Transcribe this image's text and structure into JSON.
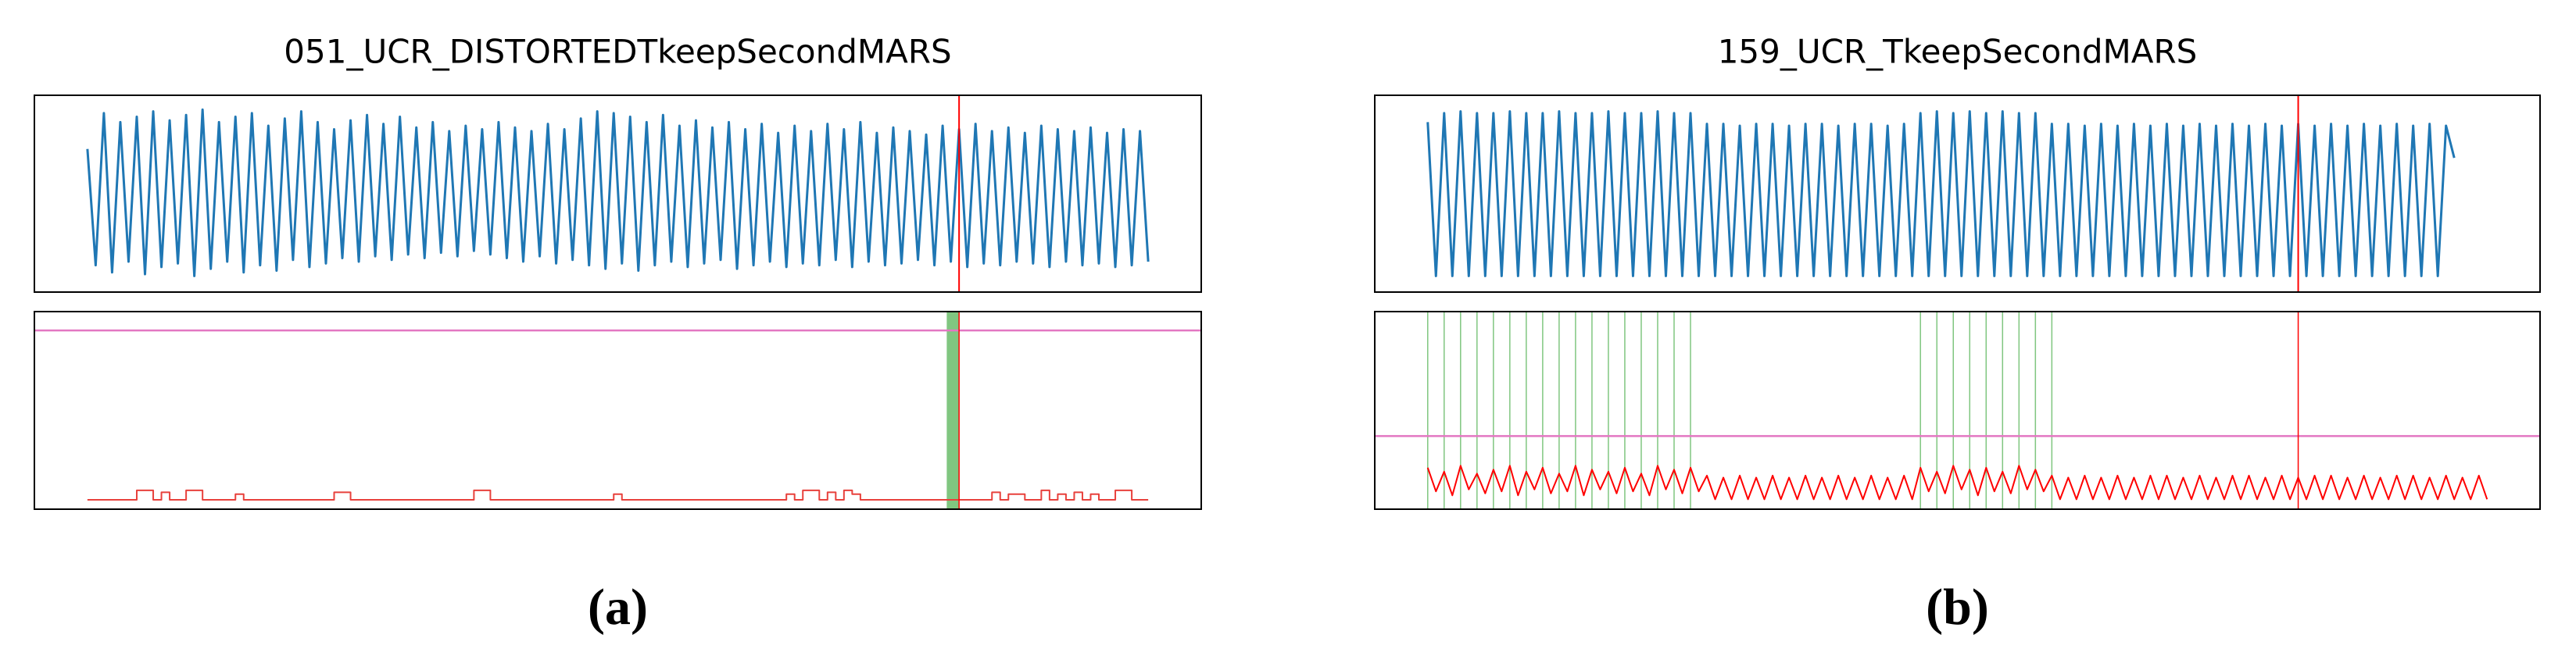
{
  "chart_data": [
    {
      "type": "line",
      "title": "051_UCR_DISTORTEDTkeepSecondMARS",
      "caption": "(a)",
      "xlim": [
        -6.45,
        135.45
      ],
      "signal_ylim": [
        -0.05,
        1.05
      ],
      "score_ylim": [
        0,
        1.05
      ],
      "signal": {
        "color": "#1f77b4",
        "values": [
          0.75,
          0.1,
          0.95,
          0.06,
          0.9,
          0.12,
          0.93,
          0.05,
          0.96,
          0.09,
          0.91,
          0.11,
          0.94,
          0.04,
          0.97,
          0.08,
          0.9,
          0.12,
          0.93,
          0.06,
          0.95,
          0.1,
          0.88,
          0.07,
          0.92,
          0.13,
          0.96,
          0.09,
          0.9,
          0.11,
          0.86,
          0.14,
          0.91,
          0.12,
          0.94,
          0.15,
          0.89,
          0.13,
          0.93,
          0.16,
          0.87,
          0.14,
          0.9,
          0.17,
          0.85,
          0.15,
          0.88,
          0.18,
          0.86,
          0.16,
          0.9,
          0.14,
          0.87,
          0.12,
          0.85,
          0.15,
          0.89,
          0.11,
          0.86,
          0.13,
          0.92,
          0.1,
          0.96,
          0.08,
          0.95,
          0.11,
          0.93,
          0.07,
          0.9,
          0.1,
          0.94,
          0.12,
          0.88,
          0.09,
          0.91,
          0.11,
          0.87,
          0.13,
          0.9,
          0.08,
          0.86,
          0.1,
          0.89,
          0.12,
          0.84,
          0.09,
          0.88,
          0.11,
          0.85,
          0.1,
          0.89,
          0.13,
          0.86,
          0.09,
          0.9,
          0.12,
          0.84,
          0.1,
          0.87,
          0.11,
          0.85,
          0.13,
          0.83,
          0.1,
          0.88,
          0.12,
          0.86,
          0.09,
          0.89,
          0.11,
          0.85,
          0.1,
          0.87,
          0.12,
          0.84,
          0.11,
          0.88,
          0.09,
          0.86,
          0.12,
          0.85,
          0.1,
          0.87,
          0.11,
          0.84,
          0.09,
          0.86,
          0.1,
          0.85,
          0.12
        ]
      },
      "score": {
        "color": "#e8413c",
        "drawstyle": "steps",
        "values": [
          0.05,
          0.05,
          0.05,
          0.05,
          0.05,
          0.05,
          0.1,
          0.1,
          0.05,
          0.09,
          0.05,
          0.05,
          0.1,
          0.1,
          0.05,
          0.05,
          0.05,
          0.05,
          0.08,
          0.05,
          0.05,
          0.05,
          0.05,
          0.05,
          0.05,
          0.05,
          0.05,
          0.05,
          0.05,
          0.05,
          0.09,
          0.09,
          0.05,
          0.05,
          0.05,
          0.05,
          0.05,
          0.05,
          0.05,
          0.05,
          0.05,
          0.05,
          0.05,
          0.05,
          0.05,
          0.05,
          0.05,
          0.1,
          0.1,
          0.05,
          0.05,
          0.05,
          0.05,
          0.05,
          0.05,
          0.05,
          0.05,
          0.05,
          0.05,
          0.05,
          0.05,
          0.05,
          0.05,
          0.05,
          0.08,
          0.05,
          0.05,
          0.05,
          0.05,
          0.05,
          0.05,
          0.05,
          0.05,
          0.05,
          0.05,
          0.05,
          0.05,
          0.05,
          0.05,
          0.05,
          0.05,
          0.05,
          0.05,
          0.05,
          0.05,
          0.08,
          0.05,
          0.1,
          0.1,
          0.05,
          0.09,
          0.05,
          0.1,
          0.08,
          0.05,
          0.05,
          0.05,
          0.05,
          0.05,
          0.05,
          0.05,
          0.05,
          0.05,
          0.05,
          0.05,
          0.05,
          0.05,
          0.05,
          0.05,
          0.05,
          0.09,
          0.05,
          0.08,
          0.08,
          0.05,
          0.05,
          0.1,
          0.05,
          0.08,
          0.05,
          0.09,
          0.05,
          0.08,
          0.05,
          0.05,
          0.1,
          0.1,
          0.05,
          0.05,
          0.05
        ]
      },
      "threshold": 0.95,
      "threshold_color": "#e377c2",
      "anomaly": 106,
      "anomaly_color": "#ff0000",
      "anomaly_region": [
        104.5,
        106
      ],
      "highlight_color": "#2ca02c"
    },
    {
      "type": "line",
      "title": "159_UCR_TkeepSecondMARS",
      "caption": "(b)",
      "xlim": [
        -6.45,
        135.45
      ],
      "signal_ylim": [
        -0.05,
        1.05
      ],
      "score_ylim": [
        0,
        1
      ],
      "signal": {
        "color": "#1f77b4",
        "values": [
          0.9,
          0.04,
          0.95,
          0.04,
          0.96,
          0.04,
          0.95,
          0.04,
          0.95,
          0.04,
          0.96,
          0.04,
          0.95,
          0.04,
          0.95,
          0.04,
          0.96,
          0.04,
          0.95,
          0.04,
          0.95,
          0.04,
          0.96,
          0.04,
          0.95,
          0.04,
          0.95,
          0.04,
          0.96,
          0.04,
          0.95,
          0.04,
          0.95,
          0.04,
          0.89,
          0.04,
          0.89,
          0.04,
          0.88,
          0.04,
          0.89,
          0.04,
          0.89,
          0.04,
          0.88,
          0.04,
          0.89,
          0.04,
          0.89,
          0.04,
          0.88,
          0.04,
          0.89,
          0.04,
          0.89,
          0.04,
          0.88,
          0.04,
          0.89,
          0.04,
          0.95,
          0.04,
          0.96,
          0.04,
          0.95,
          0.04,
          0.96,
          0.04,
          0.95,
          0.04,
          0.96,
          0.04,
          0.95,
          0.04,
          0.95,
          0.04,
          0.89,
          0.04,
          0.89,
          0.04,
          0.88,
          0.04,
          0.89,
          0.04,
          0.88,
          0.04,
          0.89,
          0.04,
          0.88,
          0.04,
          0.89,
          0.04,
          0.88,
          0.04,
          0.89,
          0.04,
          0.88,
          0.04,
          0.89,
          0.04,
          0.88,
          0.04,
          0.89,
          0.04,
          0.88,
          0.04,
          0.89,
          0.04,
          0.88,
          0.04,
          0.89,
          0.04,
          0.88,
          0.04,
          0.89,
          0.04,
          0.88,
          0.04,
          0.89,
          0.04,
          0.88,
          0.04,
          0.89,
          0.04,
          0.88,
          0.7
        ]
      },
      "score": {
        "color": "#ff0000",
        "values": [
          0.21,
          0.09,
          0.19,
          0.07,
          0.22,
          0.1,
          0.18,
          0.08,
          0.2,
          0.09,
          0.22,
          0.07,
          0.19,
          0.1,
          0.21,
          0.08,
          0.18,
          0.09,
          0.22,
          0.07,
          0.2,
          0.1,
          0.19,
          0.08,
          0.21,
          0.09,
          0.18,
          0.07,
          0.22,
          0.1,
          0.2,
          0.08,
          0.21,
          0.09,
          0.17,
          0.05,
          0.16,
          0.05,
          0.17,
          0.05,
          0.16,
          0.05,
          0.17,
          0.05,
          0.16,
          0.05,
          0.17,
          0.05,
          0.16,
          0.05,
          0.17,
          0.05,
          0.16,
          0.05,
          0.17,
          0.05,
          0.16,
          0.05,
          0.17,
          0.05,
          0.21,
          0.09,
          0.19,
          0.08,
          0.22,
          0.1,
          0.2,
          0.07,
          0.21,
          0.09,
          0.19,
          0.08,
          0.22,
          0.1,
          0.2,
          0.09,
          0.17,
          0.05,
          0.16,
          0.05,
          0.17,
          0.05,
          0.16,
          0.05,
          0.17,
          0.05,
          0.16,
          0.05,
          0.17,
          0.05,
          0.17,
          0.05,
          0.16,
          0.05,
          0.17,
          0.05,
          0.16,
          0.05,
          0.17,
          0.05,
          0.17,
          0.05,
          0.16,
          0.05,
          0.17,
          0.05,
          0.16,
          0.05,
          0.17,
          0.05,
          0.17,
          0.05,
          0.16,
          0.05,
          0.17,
          0.05,
          0.16,
          0.05,
          0.17,
          0.05,
          0.17,
          0.05,
          0.16,
          0.05,
          0.17,
          0.05,
          0.16,
          0.05,
          0.17,
          0.05
        ]
      },
      "threshold": 0.37,
      "threshold_color": "#e377c2",
      "anomaly": 106,
      "anomaly_color": "#ff0000",
      "detections": [
        0,
        2,
        4,
        6,
        8,
        10,
        12,
        14,
        16,
        18,
        20,
        22,
        24,
        26,
        28,
        30,
        32,
        60,
        62,
        64,
        66,
        68,
        70,
        72,
        74,
        76
      ],
      "highlight_color": "#2ca02c"
    }
  ]
}
